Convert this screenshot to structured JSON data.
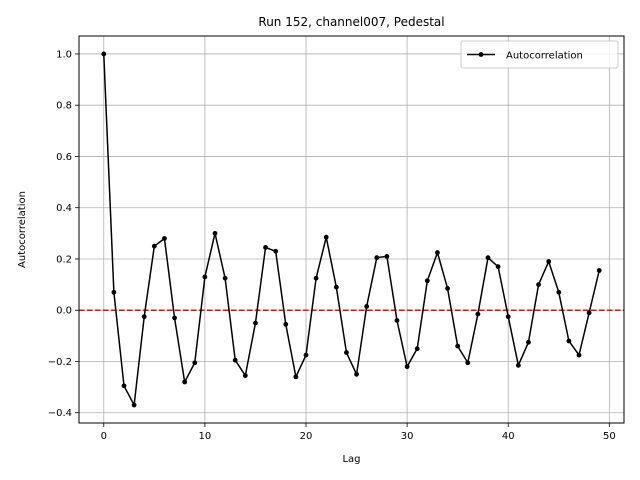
{
  "chart_data": {
    "type": "line",
    "title": "Run 152, channel007, Pedestal",
    "xlabel": "Lag",
    "ylabel": "Autocorrelation",
    "xlim": [
      -2.45,
      51.45
    ],
    "ylim": [
      -0.44,
      1.07
    ],
    "xticks": [
      0,
      10,
      20,
      30,
      40,
      50
    ],
    "yticks": [
      -0.4,
      -0.2,
      0.0,
      0.2,
      0.4,
      0.6,
      0.8,
      1.0
    ],
    "xtick_labels": [
      "0",
      "10",
      "20",
      "30",
      "40",
      "50"
    ],
    "ytick_labels": [
      "−0.4",
      "−0.2",
      "0.0",
      "0.2",
      "0.4",
      "0.6",
      "0.8",
      "1.0"
    ],
    "grid": true,
    "legend_position": "top-right",
    "series": [
      {
        "name": "Autocorrelation",
        "color": "#000000",
        "marker": "circle",
        "x": [
          0,
          1,
          2,
          3,
          4,
          5,
          6,
          7,
          8,
          9,
          10,
          11,
          12,
          13,
          14,
          15,
          16,
          17,
          18,
          19,
          20,
          21,
          22,
          23,
          24,
          25,
          26,
          27,
          28,
          29,
          30,
          31,
          32,
          33,
          34,
          35,
          36,
          37,
          38,
          39,
          40,
          41,
          42,
          43,
          44,
          45,
          46,
          47,
          48,
          49
        ],
        "y": [
          1.0,
          0.07,
          -0.295,
          -0.37,
          -0.025,
          0.25,
          0.28,
          -0.03,
          -0.28,
          -0.205,
          0.13,
          0.3,
          0.125,
          -0.195,
          -0.255,
          -0.05,
          0.245,
          0.23,
          -0.055,
          -0.26,
          -0.175,
          0.125,
          0.285,
          0.09,
          -0.165,
          -0.25,
          0.015,
          0.205,
          0.21,
          -0.04,
          -0.22,
          -0.15,
          0.115,
          0.225,
          0.085,
          -0.14,
          -0.205,
          -0.015,
          0.205,
          0.17,
          -0.025,
          -0.215,
          -0.125,
          0.1,
          0.19,
          0.07,
          -0.12,
          -0.175,
          -0.01,
          0.155
        ]
      }
    ],
    "reference_line": {
      "y": 0.0,
      "color": "#ff0000",
      "style": "dashed"
    }
  }
}
